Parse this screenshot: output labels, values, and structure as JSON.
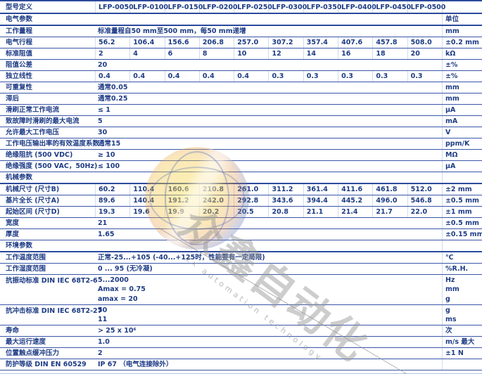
{
  "table": {
    "model_header": {
      "label": "型号定义",
      "models": [
        "LFP-0050",
        "LFP-0100",
        "LFP-0150",
        "LFP-0200",
        "LFP-0250",
        "LFP-0300",
        "LFP-0350",
        "LFP-0400",
        "LFP-0450",
        "LFP-0500"
      ],
      "unit": ""
    },
    "rows": [
      {
        "type": "section",
        "label": "电气参数",
        "unit": "单位"
      },
      {
        "type": "data",
        "label": "工作量程",
        "span": "标准量程自50 mm至500 mm，每50 mm递增",
        "unit": "mm"
      },
      {
        "type": "data",
        "label": "电气行程",
        "values": [
          "56.2",
          "106.4",
          "156.6",
          "206.8",
          "257.0",
          "307.2",
          "357.4",
          "407.6",
          "457.8",
          "508.0"
        ],
        "unit": "±0.2 mm"
      },
      {
        "type": "data",
        "label": "标准阻值",
        "values": [
          "2",
          "4",
          "6",
          "8",
          "10",
          "12",
          "14",
          "16",
          "18",
          "20"
        ],
        "unit": "kΩ"
      },
      {
        "type": "data",
        "label": "阻值公差",
        "span": "20",
        "unit": "±%"
      },
      {
        "type": "data",
        "label": "独立线性",
        "values": [
          "0.4",
          "0.4",
          "0.4",
          "0.4",
          "0.4",
          "0.3",
          "0.3",
          "0.3",
          "0.3",
          "0.3"
        ],
        "unit": "±%"
      },
      {
        "type": "data",
        "label": "可重复性",
        "span": "通常0.05",
        "unit": "mm"
      },
      {
        "type": "data",
        "label": "滞后",
        "span": "通常0.25",
        "unit": "mm"
      },
      {
        "type": "data",
        "label": "滑刷正常工作电流",
        "span": "≤ 1",
        "unit": "μA"
      },
      {
        "type": "data",
        "label": "致故障时滑刷的最大电流",
        "span": "5",
        "unit": "mA"
      },
      {
        "type": "data",
        "label": "允许最大工作电压",
        "span": "30",
        "unit": "V"
      },
      {
        "type": "data",
        "label": "工作电压输出率的有效温度系数",
        "span": "通常15",
        "unit": "ppm/K"
      },
      {
        "type": "data",
        "label": "绝缘阻抗 (500 VDC)",
        "span": "≥ 10",
        "unit": "MΩ"
      },
      {
        "type": "data",
        "label": "绝缘强度 (500 VAC，50Hz)",
        "span": "≤ 100",
        "unit": "μA"
      },
      {
        "type": "section",
        "label": "机械参数",
        "unit": ""
      },
      {
        "type": "data",
        "label": "机械尺寸 (尺寸B)",
        "values": [
          "60.2",
          "110.4",
          "160.6",
          "210.8",
          "261.0",
          "311.2",
          "361.4",
          "411.6",
          "461.8",
          "512.0"
        ],
        "unit": "±2 mm"
      },
      {
        "type": "data",
        "label": "基片全长 (尺寸A)",
        "values": [
          "89.6",
          "140.4",
          "191.2",
          "242.0",
          "292.8",
          "343.6",
          "394.4",
          "445.2",
          "496.0",
          "546.8"
        ],
        "unit": "±0.5 mm"
      },
      {
        "type": "data",
        "label": "起始区间 (尺寸D)",
        "values": [
          "19.3",
          "19.6",
          "19.9",
          "20.2",
          "20.5",
          "20.8",
          "21.1",
          "21.4",
          "21.7",
          "22.0"
        ],
        "unit": "±1 mm"
      },
      {
        "type": "data",
        "label": "宽度",
        "span": "21",
        "unit": "±0.5 mm"
      },
      {
        "type": "data",
        "label": "厚度",
        "span": "1.65",
        "unit": "±0.15 mm"
      },
      {
        "type": "section",
        "label": "环境参数",
        "unit": ""
      },
      {
        "type": "data",
        "label": "工作温度范围",
        "span": "正常-25...+105 (-40...+125时，性能要有一定局限)",
        "unit": "℃"
      },
      {
        "type": "data",
        "label": "工作湿度范围",
        "span": "0 ... 95 (无冷凝)",
        "unit": "%R.H."
      },
      {
        "type": "data",
        "label": "抗振动标准 DIN IEC 68T2-6",
        "span_lines": [
          "5...2000",
          "Amax = 0.75",
          "amax = 20"
        ],
        "unit_lines": [
          "Hz",
          "mm",
          "g"
        ]
      },
      {
        "type": "data",
        "label": "抗冲击标准 DIN IEC 68T2-27",
        "span_lines": [
          "50",
          "11"
        ],
        "unit_lines": [
          "g",
          "ms"
        ]
      },
      {
        "type": "data",
        "label": "寿命",
        "span": "> 25 x 10⁶",
        "unit": "次"
      },
      {
        "type": "data",
        "label": "最大运行速度",
        "span": "1.0",
        "unit": "m/s 最大"
      },
      {
        "type": "data",
        "label": "位置触点缓冲压力",
        "span": "2",
        "unit": "±1 N"
      },
      {
        "type": "data",
        "label": "防护等级 DIN EN 60529",
        "span": "IP 67 （电气连接除外）",
        "unit": ""
      }
    ]
  },
  "watermark": {
    "cn": "众鑫自动化",
    "en": "zx automation technology"
  },
  "colors": {
    "text": "#1e3c86",
    "row_line": "#3a57a8",
    "section_line": "#2c4a9c"
  }
}
